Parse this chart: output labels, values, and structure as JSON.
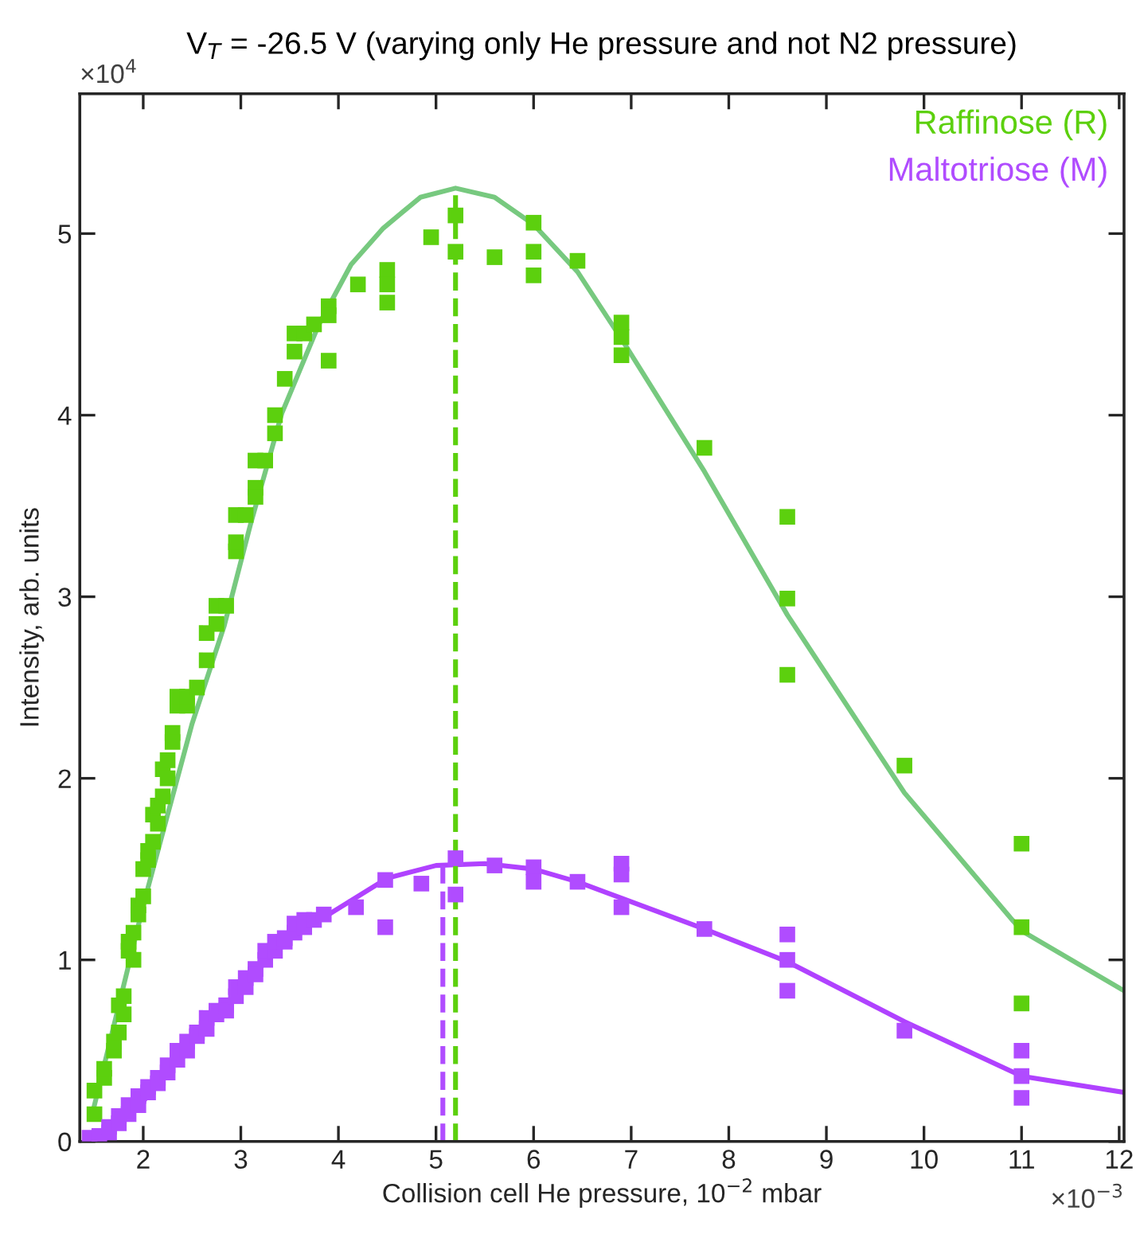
{
  "chart_data": {
    "type": "scatter",
    "title": "V$_{T}$ = -26.5 V (varying only He pressure and not N2 pressure)",
    "xlabel": "Collision cell He pressure, 10$^{−2}$ mbar",
    "ylabel": "Intensity, arb. units",
    "annotations": [
      "×10$^{4}$",
      "×10$^{−3}$"
    ],
    "xlim": [
      1.35,
      12.05
    ],
    "ylim": [
      0,
      5.77
    ],
    "xticks": [
      2,
      3,
      4,
      5,
      6,
      7,
      8,
      9,
      10,
      11,
      12
    ],
    "yticks": [
      0,
      1,
      2,
      3,
      4,
      5
    ],
    "grid": false,
    "legend": "top right",
    "series": [
      {
        "name": "Raffinose (R)",
        "marker": "square",
        "color": "#5cd00e",
        "x": [
          1.5,
          1.5,
          1.6,
          1.6,
          1.7,
          1.7,
          1.75,
          1.75,
          1.8,
          1.8,
          1.85,
          1.85,
          1.9,
          1.9,
          1.95,
          1.95,
          2.0,
          2.0,
          2.05,
          2.05,
          2.1,
          2.1,
          2.15,
          2.15,
          2.2,
          2.2,
          2.25,
          2.25,
          2.3,
          2.3,
          2.35,
          2.35,
          2.45,
          2.45,
          2.55,
          2.65,
          2.65,
          2.75,
          2.75,
          2.85,
          2.95,
          2.95,
          2.95,
          3.05,
          3.15,
          3.15,
          3.15,
          3.25,
          3.35,
          3.35,
          3.45,
          3.55,
          3.55,
          3.65,
          3.75,
          3.9,
          3.9,
          3.9,
          4.2,
          4.5,
          4.5,
          4.5,
          4.95,
          5.2,
          5.2,
          5.6,
          6.0,
          6.0,
          6.0,
          6.45,
          6.9,
          6.9,
          6.9,
          7.75,
          8.6,
          8.6,
          8.6,
          9.8,
          11.0,
          11.0,
          11.0
        ],
        "values": [
          0.15,
          0.28,
          0.35,
          0.4,
          0.5,
          0.55,
          0.75,
          0.6,
          0.8,
          0.7,
          1.05,
          1.1,
          1.15,
          1.0,
          1.3,
          1.25,
          1.35,
          1.5,
          1.55,
          1.6,
          1.65,
          1.8,
          1.85,
          1.75,
          1.9,
          2.05,
          2.0,
          2.1,
          2.25,
          2.2,
          2.4,
          2.45,
          2.4,
          2.45,
          2.5,
          2.65,
          2.8,
          2.95,
          2.85,
          2.95,
          3.25,
          3.45,
          3.3,
          3.45,
          3.6,
          3.75,
          3.55,
          3.75,
          3.9,
          4.0,
          4.2,
          4.45,
          4.35,
          4.45,
          4.5,
          4.6,
          4.3,
          4.55,
          4.72,
          4.8,
          4.72,
          4.62,
          4.98,
          5.1,
          4.9,
          4.87,
          5.06,
          4.9,
          4.77,
          4.85,
          4.51,
          4.43,
          4.33,
          3.82,
          3.44,
          2.99,
          2.57,
          2.07,
          1.64,
          1.18,
          0.76
        ]
      },
      {
        "type": "line",
        "marker": "none",
        "color": "#77c97f",
        "x": [
          1.5,
          2.0,
          2.5,
          2.83,
          3.1,
          3.42,
          3.8,
          4.13,
          4.46,
          4.84,
          5.2,
          5.6,
          6.0,
          6.45,
          6.9,
          7.75,
          8.6,
          9.8,
          11.0,
          12.05
        ],
        "values": [
          0.2,
          1.3,
          2.3,
          2.84,
          3.4,
          4.01,
          4.5,
          4.83,
          5.03,
          5.2,
          5.25,
          5.2,
          5.05,
          4.79,
          4.42,
          3.69,
          2.9,
          1.92,
          1.16,
          0.83
        ]
      },
      {
        "name": "Maltotriose (M)",
        "marker": "square",
        "color": "#b04cff",
        "x": [
          1.45,
          1.55,
          1.65,
          1.65,
          1.75,
          1.75,
          1.85,
          1.85,
          1.95,
          1.95,
          2.05,
          2.05,
          2.15,
          2.15,
          2.25,
          2.25,
          2.35,
          2.35,
          2.45,
          2.45,
          2.55,
          2.55,
          2.65,
          2.65,
          2.75,
          2.75,
          2.85,
          2.85,
          2.95,
          2.95,
          3.05,
          3.05,
          3.15,
          3.15,
          3.25,
          3.25,
          3.35,
          3.35,
          3.45,
          3.45,
          3.55,
          3.55,
          3.65,
          3.65,
          3.75,
          3.85,
          4.18,
          4.48,
          4.48,
          4.85,
          5.2,
          5.2,
          5.6,
          6.0,
          6.0,
          6.45,
          6.9,
          6.9,
          6.9,
          7.75,
          8.6,
          8.6,
          8.6,
          9.8,
          11.0,
          11.0,
          11.0
        ],
        "values": [
          0.02,
          0.03,
          0.05,
          0.08,
          0.1,
          0.14,
          0.15,
          0.2,
          0.2,
          0.25,
          0.27,
          0.3,
          0.32,
          0.35,
          0.38,
          0.42,
          0.45,
          0.5,
          0.5,
          0.55,
          0.58,
          0.6,
          0.62,
          0.68,
          0.7,
          0.72,
          0.75,
          0.72,
          0.8,
          0.85,
          0.85,
          0.9,
          0.95,
          0.92,
          1.0,
          1.05,
          1.05,
          1.1,
          1.1,
          1.12,
          1.15,
          1.2,
          1.22,
          1.18,
          1.22,
          1.25,
          1.29,
          1.44,
          1.18,
          1.42,
          1.56,
          1.36,
          1.52,
          1.51,
          1.43,
          1.43,
          1.53,
          1.47,
          1.29,
          1.17,
          1.14,
          1.0,
          0.83,
          0.61,
          0.5,
          0.36,
          0.24
        ]
      },
      {
        "type": "line",
        "marker": "none",
        "color": "#b042ff",
        "x": [
          1.45,
          2.0,
          2.5,
          3.0,
          3.5,
          3.9,
          4.5,
          5.0,
          5.5,
          6.0,
          6.45,
          6.9,
          7.75,
          8.6,
          9.8,
          11.0,
          12.05
        ],
        "values": [
          0.0,
          0.22,
          0.55,
          0.85,
          1.12,
          1.25,
          1.45,
          1.52,
          1.53,
          1.5,
          1.43,
          1.34,
          1.17,
          0.99,
          0.66,
          0.36,
          0.27
        ]
      }
    ],
    "ref_lines": [
      {
        "axis": "x",
        "value": 5.2,
        "color": "#5cd00e",
        "line_style": "dashed"
      },
      {
        "axis": "x",
        "value": 5.07,
        "color": "#b04cff",
        "line_style": "dashed"
      }
    ]
  }
}
